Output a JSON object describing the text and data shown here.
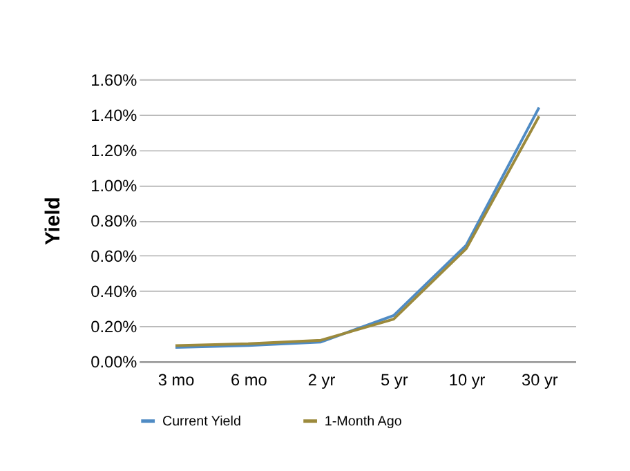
{
  "chart_data": {
    "type": "line",
    "ylabel": "Yield",
    "categories": [
      "3 mo",
      "6 mo",
      "2 yr",
      "5 yr",
      "10 yr",
      "30 yr"
    ],
    "series": [
      {
        "name": "Current Yield",
        "color": "#4f8bc4",
        "values": [
          0.08,
          0.09,
          0.11,
          0.26,
          0.66,
          1.44
        ]
      },
      {
        "name": "1-Month Ago",
        "color": "#9c8a3c",
        "values": [
          0.09,
          0.1,
          0.12,
          0.24,
          0.64,
          1.39
        ]
      }
    ],
    "ylim": [
      0,
      1.6
    ],
    "yticks": [
      {
        "value": 0,
        "label": "0.00%"
      },
      {
        "value": 0.2,
        "label": "0.20%"
      },
      {
        "value": 0.4,
        "label": "0.40%"
      },
      {
        "value": 0.6,
        "label": "0.60%"
      },
      {
        "value": 0.8,
        "label": "0.80%"
      },
      {
        "value": 1.0,
        "label": "1.00%"
      },
      {
        "value": 1.2,
        "label": "1.20%"
      },
      {
        "value": 1.4,
        "label": "1.40%"
      },
      {
        "value": 1.6,
        "label": "1.60%"
      }
    ],
    "grid": "y",
    "legend": "bottom",
    "marker": "none",
    "line_style": "solid"
  }
}
